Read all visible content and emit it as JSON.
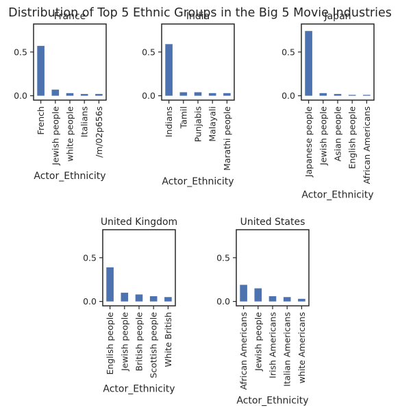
{
  "chart_data": {
    "type": "bar",
    "title": "Distribution of Top 5 Ethnic Groups in the Big 5 Movie Industries",
    "bar_color": "#4c72b0",
    "ylim": [
      -0.05,
      0.82
    ],
    "yticks": [
      0.0,
      0.5
    ],
    "ytick_labels": [
      "0.0",
      "0.5"
    ],
    "grid": false,
    "panels": [
      {
        "title": "France",
        "xlabel": "Actor_Ethnicity",
        "categories": [
          "French",
          "Jewish people",
          "white people",
          "Italians",
          "/m/02p656s"
        ],
        "values": [
          0.57,
          0.07,
          0.03,
          0.02,
          0.02
        ]
      },
      {
        "title": "India",
        "xlabel": "Actor_Ethnicity",
        "categories": [
          "Indians",
          "Tamil",
          "Punjabis",
          "Malayali",
          "Marathi people"
        ],
        "values": [
          0.59,
          0.04,
          0.04,
          0.03,
          0.03
        ]
      },
      {
        "title": "Japan",
        "xlabel": "Actor_Ethnicity",
        "categories": [
          "Japanese people",
          "Jewish people",
          "Asian people",
          "English people",
          "African Americans"
        ],
        "values": [
          0.74,
          0.03,
          0.02,
          0.01,
          0.01
        ]
      },
      {
        "title": "United Kingdom",
        "xlabel": "Actor_Ethnicity",
        "categories": [
          "English people",
          "Jewish people",
          "British people",
          "Scottish people",
          "White British"
        ],
        "values": [
          0.39,
          0.1,
          0.08,
          0.06,
          0.05
        ]
      },
      {
        "title": "United States",
        "xlabel": "Actor_Ethnicity",
        "categories": [
          "African Americans",
          "Jewish people",
          "Irish Americans",
          "Italian Americans",
          "white Americans"
        ],
        "values": [
          0.19,
          0.15,
          0.06,
          0.05,
          0.03
        ]
      }
    ]
  }
}
